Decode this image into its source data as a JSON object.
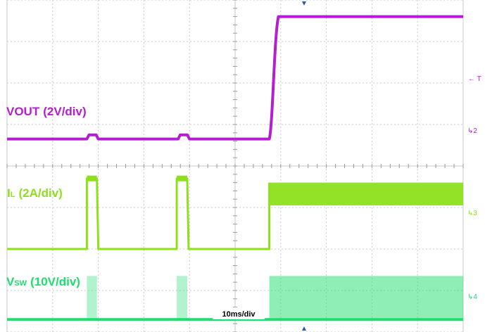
{
  "chart_data": {
    "type": "line",
    "title": "",
    "timebase": "10ms/div",
    "trigger_marker": "T",
    "grid": true,
    "divisions": {
      "x": 10,
      "y": 8
    },
    "series": [
      {
        "name_main": "VOUT",
        "name_sub": "",
        "scale": "(2V/div)",
        "channel_marker": "2",
        "color": "#b31ed0",
        "baseline_div": 4.65,
        "high_div": 7.6,
        "pulse_level_div": 4.75,
        "pulses_div": [
          [
            1.75,
            2.0
          ],
          [
            3.75,
            4.0
          ]
        ],
        "rise_start_div": 5.75,
        "rise_end_div": 5.95
      },
      {
        "name_main": "I",
        "name_sub": "L",
        "scale": "(2A/div)",
        "channel_marker": "3",
        "color": "#8ee01c",
        "baseline_div": 2.0,
        "pulse_level_div": 3.7,
        "pulses_div": [
          [
            1.75,
            1.97
          ],
          [
            3.72,
            3.95
          ]
        ],
        "band_start_div": 5.75,
        "band_low_div": 3.05,
        "band_high_div": 3.6
      },
      {
        "name_main": "V",
        "name_sub": "SW",
        "scale": "(10V/div)",
        "channel_marker": "4",
        "color": "#1ede6e",
        "baseline_div": 0.3,
        "pulse_level_div": 1.35,
        "pulses_div": [
          [
            1.75,
            1.97
          ],
          [
            3.72,
            3.95
          ]
        ],
        "band_start_div": 5.75,
        "band_high_div": 1.35
      }
    ],
    "colors": {
      "grid": "#c8c8c8",
      "grid_ticks": "#9a9a9a",
      "trigger_arrow": "#2a5db0"
    }
  }
}
